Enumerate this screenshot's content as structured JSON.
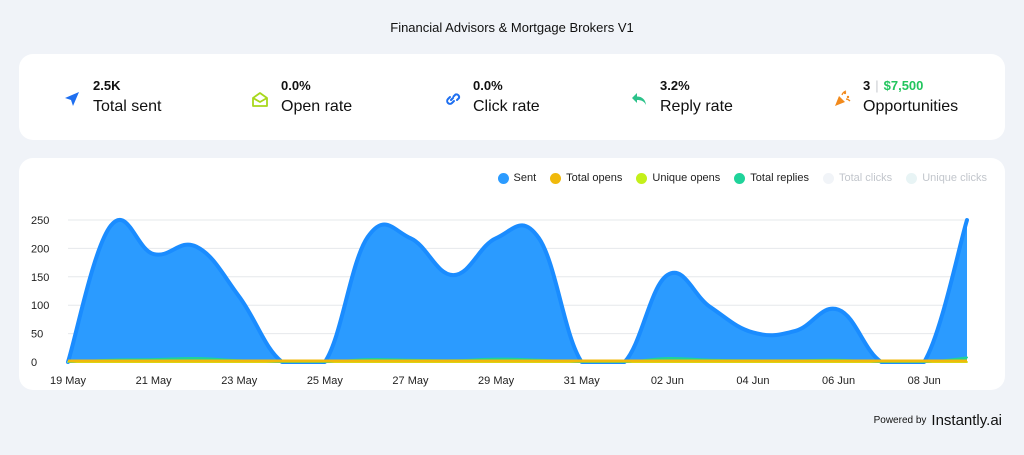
{
  "header": {
    "title": "Financial Advisors & Mortgage Brokers V1"
  },
  "stats": [
    {
      "value": "2.5K",
      "label": "Total sent",
      "icon": "send-icon"
    },
    {
      "value": "0.0%",
      "label": "Open rate",
      "icon": "envelope-open-icon"
    },
    {
      "value": "0.0%",
      "label": "Click rate",
      "icon": "link-icon"
    },
    {
      "value": "3.2%",
      "label": "Reply rate",
      "icon": "reply-icon"
    },
    {
      "value": "3",
      "value_sep": "|",
      "value_extra": "$7,500",
      "label": "Opportunities",
      "icon": "party-popper-icon"
    }
  ],
  "colors": {
    "sent": "#2b9bff",
    "sent_line": "#1a8cff",
    "total_opens": "#f0b90b",
    "unique_opens": "#c4f01a",
    "total_replies": "#1fd39a",
    "total_clicks": "#f1f4f8",
    "unique_clicks": "#e8f4f5",
    "icon_blue": "#1e6ff0",
    "icon_green": "#a8d81c",
    "icon_teal": "#2cc28a",
    "icon_orange": "#f28a1c"
  },
  "chart_data": {
    "type": "area",
    "x": [
      "19 May",
      "20 May",
      "21 May",
      "22 May",
      "23 May",
      "24 May",
      "25 May",
      "26 May",
      "27 May",
      "28 May",
      "29 May",
      "30 May",
      "31 May",
      "01 Jun",
      "02 Jun",
      "03 Jun",
      "04 Jun",
      "05 Jun",
      "06 Jun",
      "07 Jun",
      "08 Jun",
      "09 Jun"
    ],
    "x_tick_labels": [
      "19 May",
      "21 May",
      "23 May",
      "25 May",
      "27 May",
      "29 May",
      "31 May",
      "02 Jun",
      "04 Jun",
      "06 Jun",
      "08 Jun"
    ],
    "y_ticks": [
      "0",
      "50",
      "100",
      "150",
      "200",
      "250"
    ],
    "ylim": [
      0,
      250
    ],
    "grid": true,
    "legend_position": "top-right",
    "series": [
      {
        "name": "Sent",
        "values": [
          0,
          240,
          190,
          203,
          115,
          0,
          0,
          220,
          218,
          153,
          218,
          218,
          0,
          0,
          153,
          97,
          52,
          55,
          92,
          0,
          0,
          250
        ]
      },
      {
        "name": "Total opens",
        "values": [
          0,
          0,
          0,
          0,
          0,
          0,
          0,
          0,
          0,
          0,
          0,
          0,
          0,
          0,
          0,
          0,
          0,
          0,
          0,
          0,
          0,
          0
        ]
      },
      {
        "name": "Unique opens",
        "values": [
          0,
          0,
          0,
          0,
          0,
          0,
          0,
          0,
          0,
          0,
          0,
          0,
          0,
          0,
          0,
          0,
          0,
          0,
          0,
          0,
          0,
          0
        ]
      },
      {
        "name": "Total replies",
        "values": [
          0,
          4,
          5,
          7,
          3,
          0,
          0,
          5,
          4,
          3,
          6,
          4,
          0,
          0,
          7,
          4,
          3,
          3,
          4,
          0,
          0,
          8
        ]
      },
      {
        "name": "Total clicks",
        "values": [
          0,
          0,
          0,
          0,
          0,
          0,
          0,
          0,
          0,
          0,
          0,
          0,
          0,
          0,
          0,
          0,
          0,
          0,
          0,
          0,
          0,
          0
        ]
      },
      {
        "name": "Unique clicks",
        "values": [
          0,
          0,
          0,
          0,
          0,
          0,
          0,
          0,
          0,
          0,
          0,
          0,
          0,
          0,
          0,
          0,
          0,
          0,
          0,
          0,
          0,
          0
        ]
      }
    ]
  },
  "footer": {
    "powered_by": "Powered by",
    "brand": "Instantly.ai"
  }
}
